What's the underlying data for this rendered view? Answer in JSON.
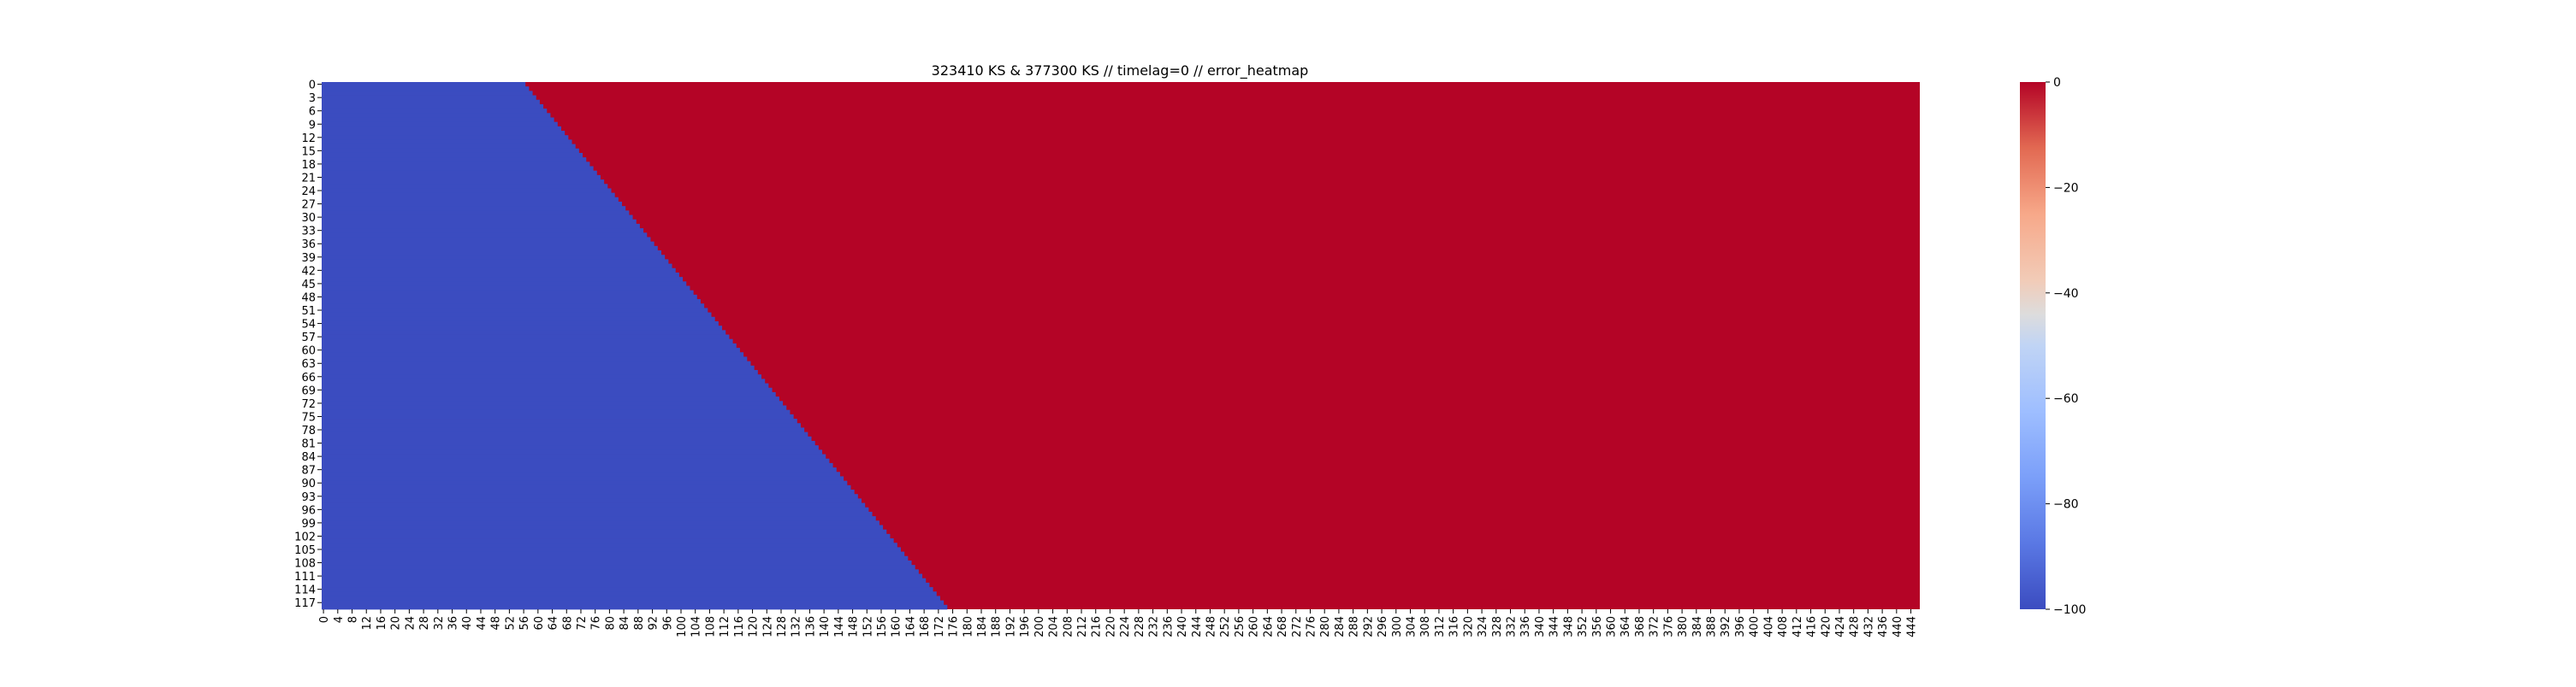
{
  "chart_data": {
    "type": "heatmap",
    "title": "323410 KS & 377300 KS // timelag=0 // error_heatmap",
    "xlabel": "",
    "ylabel": "",
    "n_cols": 447,
    "n_rows": 119,
    "x_tick_labels": [
      "0",
      "4",
      "8",
      "12",
      "16",
      "20",
      "24",
      "28",
      "32",
      "36",
      "40",
      "44",
      "48",
      "52",
      "56",
      "60",
      "64",
      "68",
      "72",
      "76",
      "80",
      "84",
      "88",
      "92",
      "96",
      "100",
      "104",
      "108",
      "112",
      "116",
      "120",
      "124",
      "128",
      "132",
      "136",
      "140",
      "144",
      "148",
      "152",
      "156",
      "160",
      "164",
      "168",
      "172",
      "176",
      "180",
      "184",
      "188",
      "192",
      "196",
      "200",
      "204",
      "208",
      "212",
      "216",
      "220",
      "224",
      "228",
      "232",
      "236",
      "240",
      "244",
      "248",
      "252",
      "256",
      "260",
      "264",
      "268",
      "272",
      "276",
      "280",
      "284",
      "288",
      "292",
      "296",
      "300",
      "304",
      "308",
      "312",
      "316",
      "320",
      "324",
      "328",
      "332",
      "336",
      "340",
      "344",
      "348",
      "352",
      "356",
      "360",
      "364",
      "368",
      "372",
      "376",
      "380",
      "384",
      "388",
      "392",
      "396",
      "400",
      "404",
      "408",
      "412",
      "416",
      "420",
      "424",
      "428",
      "432",
      "436",
      "440",
      "444"
    ],
    "y_tick_labels": [
      "0",
      "3",
      "6",
      "9",
      "12",
      "15",
      "18",
      "21",
      "24",
      "27",
      "30",
      "33",
      "36",
      "39",
      "42",
      "45",
      "48",
      "51",
      "54",
      "57",
      "60",
      "63",
      "66",
      "69",
      "72",
      "75",
      "78",
      "81",
      "84",
      "87",
      "90",
      "93",
      "96",
      "99",
      "102",
      "105",
      "108",
      "111",
      "114",
      "117"
    ],
    "cell_rule": {
      "description": "value is -100 where column < 57 + row, else 0",
      "offset": 57,
      "below_value": -100,
      "above_value": 0
    },
    "colorbar": {
      "colormap": "coolwarm",
      "vmin": -100,
      "vmax": 0,
      "tick_labels": [
        "0",
        "−20",
        "−40",
        "−60",
        "−80",
        "−100"
      ],
      "tick_values": [
        0,
        -20,
        -40,
        -60,
        -80,
        -100
      ]
    },
    "colors": {
      "low": "#3b4cc0",
      "high": "#b40426"
    },
    "grid": false,
    "legend": "colorbar-right"
  }
}
